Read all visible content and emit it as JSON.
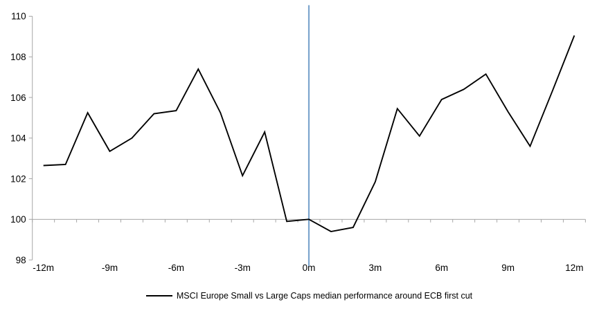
{
  "chart_data": {
    "type": "line",
    "title": "",
    "x_axis": {
      "tick_labels": [
        "-12m",
        "-9m",
        "-6m",
        "-3m",
        "0m",
        "3m",
        "6m",
        "9m",
        "12m"
      ],
      "tick_positions": [
        -12,
        -9,
        -6,
        -3,
        0,
        3,
        6,
        9,
        12
      ],
      "xlim": [
        -12.5,
        12.5
      ],
      "minor_tick_step": 1,
      "axis_crosses_at_y": 100
    },
    "y_axis": {
      "ticks": [
        98,
        100,
        102,
        104,
        106,
        108,
        110
      ],
      "ylim": [
        98,
        110
      ]
    },
    "event_line": {
      "x": 0,
      "color": "#7EA6CE"
    },
    "series": [
      {
        "name": "MSCI Europe Small vs Large Caps median performance around ECB first cut",
        "color": "#000000",
        "x": [
          -12,
          -11,
          -10,
          -9,
          -8,
          -7,
          -6,
          -5,
          -4,
          -3,
          -2,
          -1,
          0,
          1,
          2,
          3,
          4,
          5,
          6,
          7,
          8,
          9,
          10,
          11,
          12
        ],
        "values": [
          102.65,
          102.7,
          105.25,
          103.35,
          104.0,
          105.2,
          105.35,
          107.4,
          105.25,
          102.15,
          104.3,
          99.9,
          100.0,
          99.4,
          99.6,
          101.85,
          105.45,
          104.1,
          105.9,
          106.4,
          107.15,
          105.3,
          103.6,
          106.3,
          109.05
        ]
      }
    ],
    "legend": {
      "label": "MSCI Europe Small vs Large Caps median performance around ECB first cut",
      "position": "bottom-center"
    },
    "colors": {
      "axis": "#A6A6A6",
      "text": "#000000",
      "background": "#FFFFFF"
    },
    "grid": "off"
  }
}
